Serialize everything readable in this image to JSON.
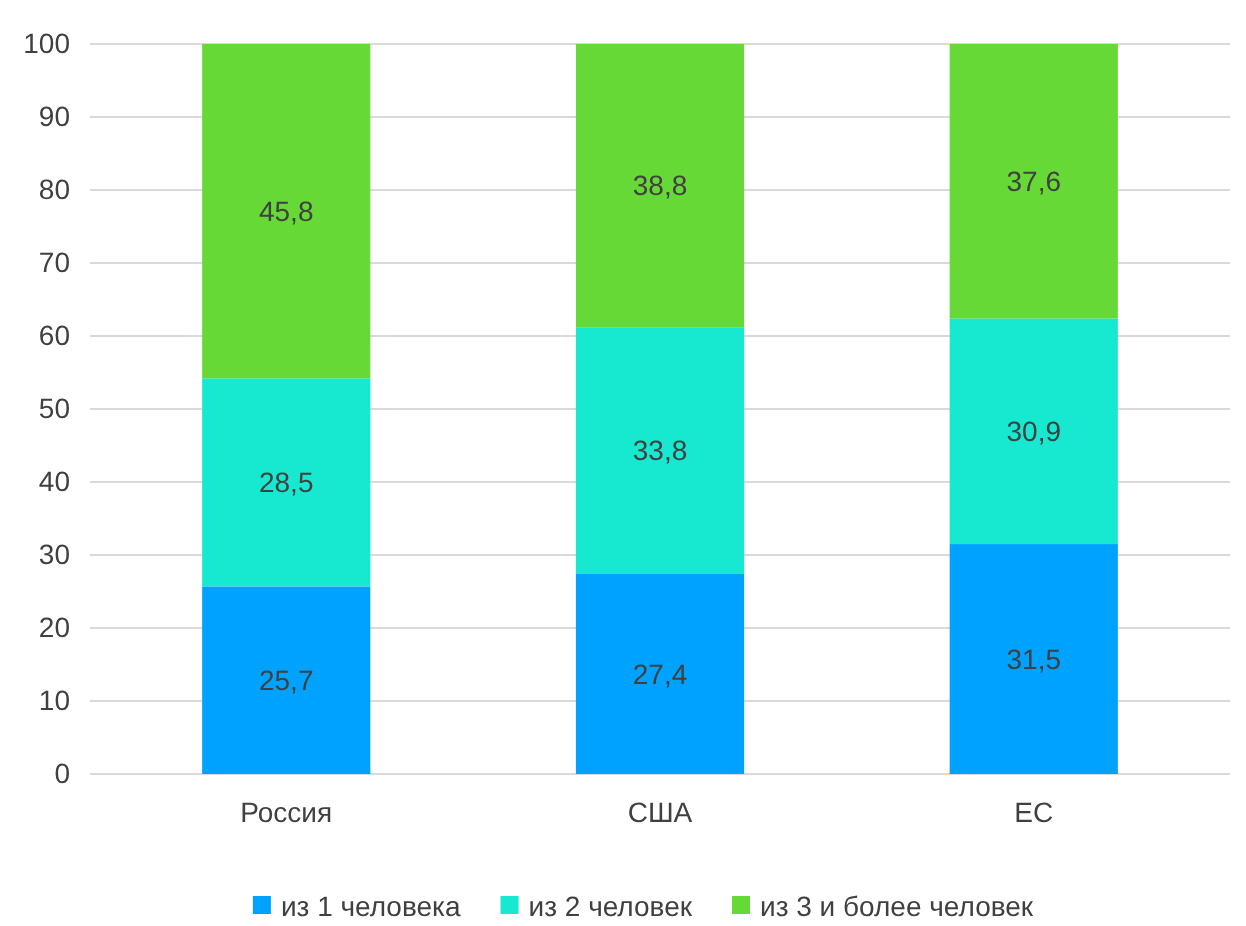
{
  "chart_data": {
    "type": "bar",
    "stacked": true,
    "categories": [
      "Россия",
      "США",
      "ЕС"
    ],
    "series": [
      {
        "name": "из 1 человека",
        "color": "#00a2ff",
        "values": [
          25.7,
          27.4,
          31.5
        ]
      },
      {
        "name": "из 2 человек",
        "color": "#17e8d0",
        "values": [
          28.5,
          33.8,
          30.9
        ]
      },
      {
        "name": "из 3 и более человек",
        "color": "#66d936",
        "values": [
          45.8,
          38.8,
          37.6
        ]
      }
    ],
    "value_labels": [
      [
        "25,7",
        "27,4",
        "31,5"
      ],
      [
        "28,5",
        "33,8",
        "30,9"
      ],
      [
        "45,8",
        "38,8",
        "37,6"
      ]
    ],
    "ylim": [
      0,
      100
    ],
    "yticks": [
      0,
      10,
      20,
      30,
      40,
      50,
      60,
      70,
      80,
      90,
      100
    ],
    "grid": "y",
    "legend": "bottom"
  }
}
